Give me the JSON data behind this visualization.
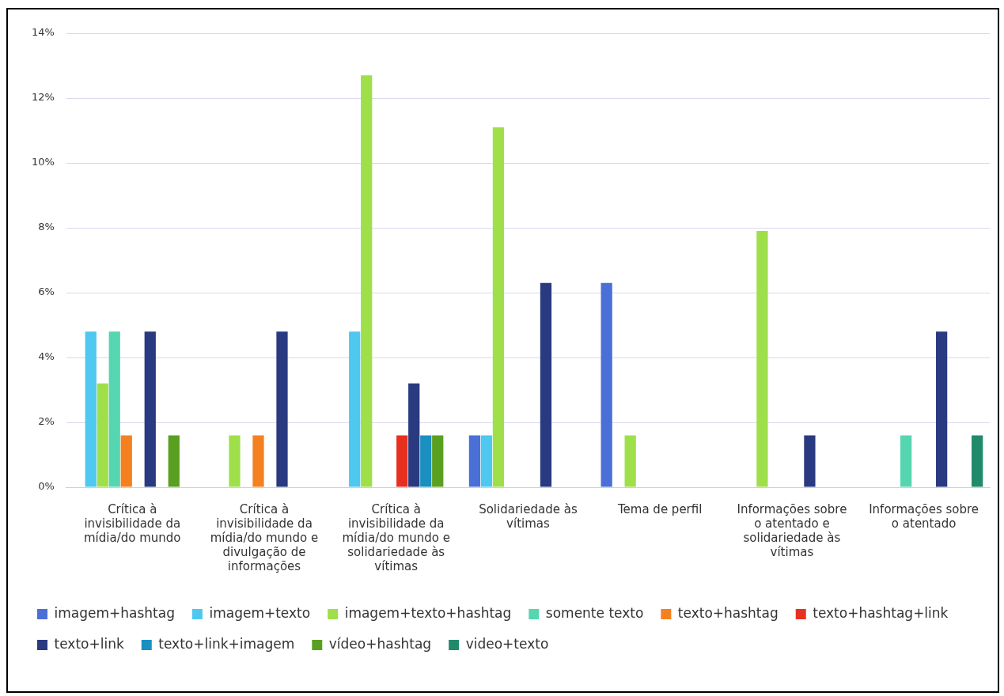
{
  "chart_data": {
    "type": "bar",
    "categories": [
      "Crítica à invisibilidade da mídia/do mundo",
      "Crítica à invisibilidade da mídia/do mundo e divulgação de informações",
      "Crítica à invisibilidade da mídia/do mundo e solidariedade às vítimas",
      "Solidariedade às vítimas",
      "Tema de perfil",
      "Informações sobre o atentado e solidariedade às vítimas",
      "Informações sobre o atentado"
    ],
    "series": [
      {
        "name": "imagem+hashtag",
        "color": "#4a6fd6",
        "values": [
          0,
          0,
          0,
          1.6,
          6.3,
          0,
          0
        ]
      },
      {
        "name": "imagem+texto",
        "color": "#4fc8f0",
        "values": [
          4.8,
          0,
          4.8,
          1.6,
          0,
          0,
          0
        ]
      },
      {
        "name": "imagem+texto+hashtag",
        "color": "#9fe04a",
        "values": [
          3.2,
          1.6,
          12.7,
          11.1,
          1.6,
          7.9,
          0
        ]
      },
      {
        "name": "somente texto",
        "color": "#56d6b0",
        "values": [
          4.8,
          0,
          0,
          0,
          0,
          0,
          1.6
        ]
      },
      {
        "name": "texto+hashtag",
        "color": "#f58020",
        "values": [
          1.6,
          1.6,
          0,
          0,
          0,
          0,
          0
        ]
      },
      {
        "name": "texto+hashtag+link",
        "color": "#e83020",
        "values": [
          0,
          0,
          1.6,
          0,
          0,
          0,
          0
        ]
      },
      {
        "name": "texto+link",
        "color": "#2a3a80",
        "values": [
          4.8,
          4.8,
          3.2,
          6.3,
          0,
          1.6,
          4.8
        ]
      },
      {
        "name": "texto+link+imagem",
        "color": "#1a90c0",
        "values": [
          0,
          0,
          1.6,
          0,
          0,
          0,
          0
        ]
      },
      {
        "name": "vídeo+hashtag",
        "color": "#5aa020",
        "values": [
          1.6,
          0,
          1.6,
          0,
          0,
          0,
          0
        ]
      },
      {
        "name": "video+texto",
        "color": "#208a6a",
        "values": [
          0,
          0,
          0,
          0,
          0,
          0,
          1.6
        ]
      }
    ],
    "ylim": [
      0,
      14
    ],
    "yticks": [
      {
        "value": 0,
        "label": "0%"
      },
      {
        "value": 2,
        "label": "2%"
      },
      {
        "value": 4,
        "label": "4%"
      },
      {
        "value": 6,
        "label": "6%"
      },
      {
        "value": 8,
        "label": "8%"
      },
      {
        "value": 10,
        "label": "10%"
      },
      {
        "value": 12,
        "label": "12%"
      },
      {
        "value": 14,
        "label": "14%"
      }
    ],
    "grid": "y",
    "legend": "bottom"
  }
}
